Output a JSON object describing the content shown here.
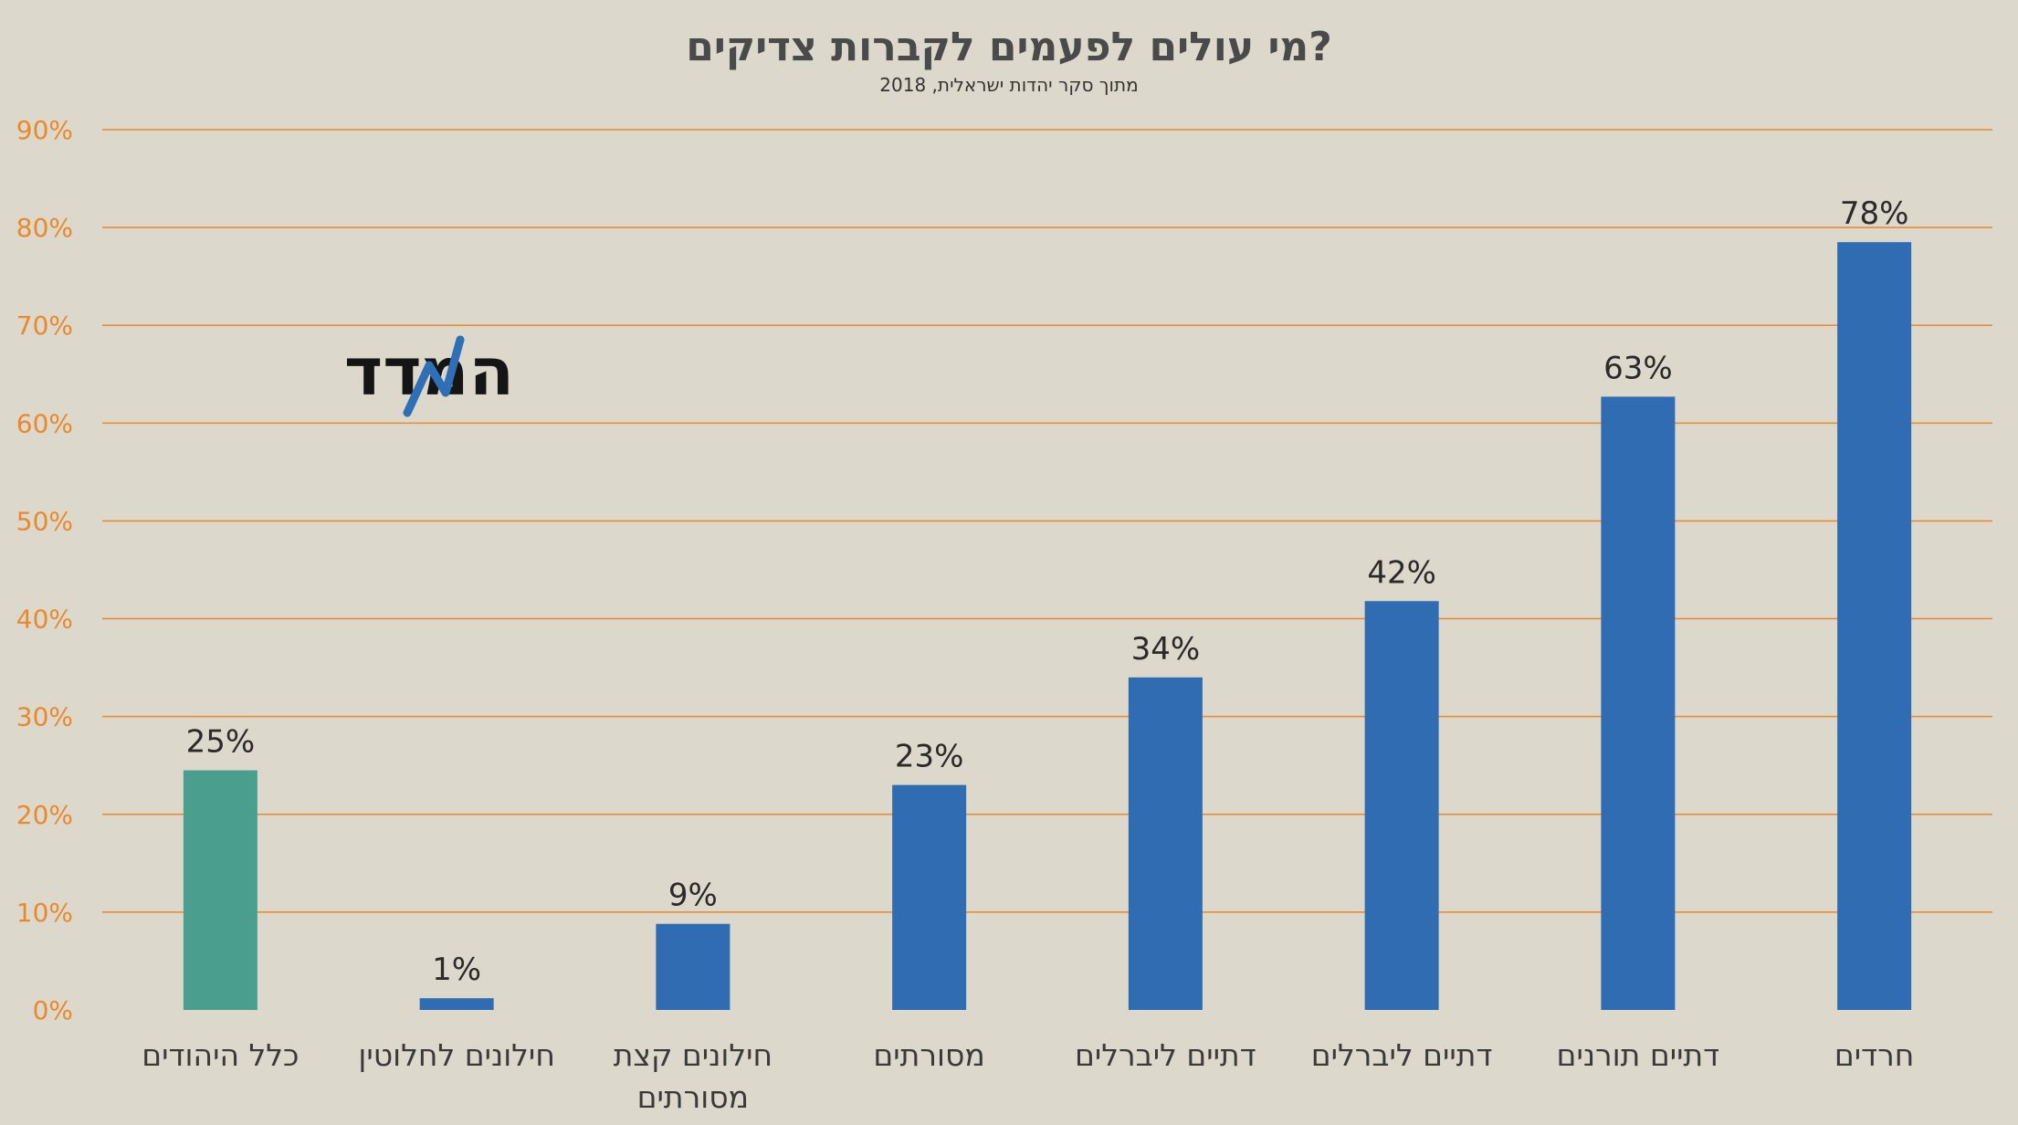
{
  "chart_data": {
    "type": "bar",
    "title": "מי עולים לפעמים לקברות צדיקים?",
    "subtitle": "מתוך סקר יהדות ישראלית, 2018",
    "categories": [
      "כלל היהודים",
      "חילונים לחלוטין",
      "חילונים קצת מסורתים",
      "מסורתים",
      "דתיים ליברלים",
      "דתיים ליברלים",
      "דתיים תורנים",
      "חרדים"
    ],
    "values": [
      24.5,
      1.2,
      8.8,
      23,
      34,
      41.8,
      62.7,
      78.5
    ],
    "data_labels": [
      "25%",
      "1%",
      "9%",
      "23%",
      "34%",
      "42%",
      "63%",
      "78%"
    ],
    "bar_colors": [
      "#4a9e8e",
      "#306cb1",
      "#306cb1",
      "#306cb1",
      "#306cb1",
      "#306cb1",
      "#306cb1",
      "#306cb1"
    ],
    "ylim": [
      0,
      90
    ],
    "yticks": [
      "0%",
      "10%",
      "20%",
      "30%",
      "40%",
      "50%",
      "60%",
      "70%",
      "80%",
      "90%"
    ],
    "xlabel": "",
    "ylabel": "",
    "grid": true,
    "grid_color": "#e8892e",
    "tick_color": "#e8892e",
    "background": "#dcd8cb"
  },
  "logo": {
    "text": "המדד",
    "accent": "#2e6fb6"
  }
}
